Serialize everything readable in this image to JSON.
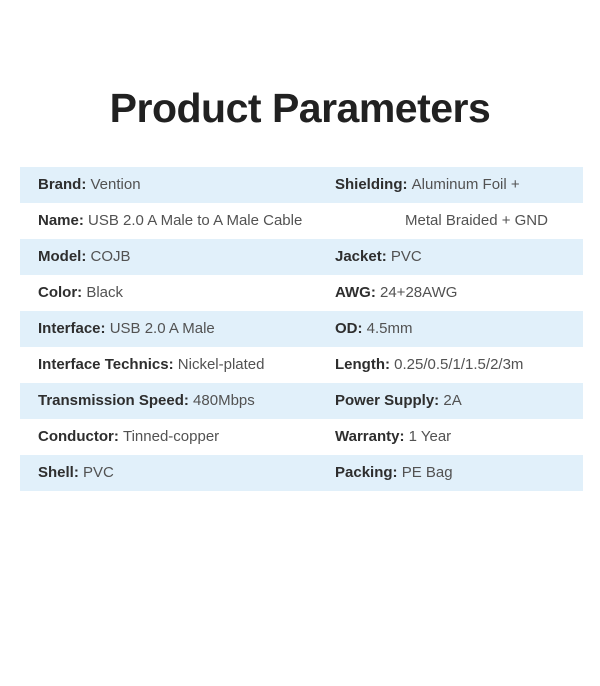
{
  "page": {
    "title": "Product Parameters"
  },
  "colors": {
    "background": "#ffffff",
    "title": "#212121",
    "stripe": "#e1f0fa",
    "label": "#2e2e2e",
    "value": "#525252"
  },
  "table": {
    "separator": ": ",
    "rows": [
      {
        "shaded": true,
        "left": {
          "label": "Brand",
          "value": "Vention"
        },
        "right": {
          "label": "Shielding",
          "value": "Aluminum Foil +"
        }
      },
      {
        "shaded": false,
        "left": {
          "label": "Name",
          "value": "USB 2.0 A Male to A Male Cable"
        },
        "right": {
          "label": "",
          "value": "Metal Braided + GND",
          "indent": true
        }
      },
      {
        "shaded": true,
        "left": {
          "label": "Model",
          "value": "COJB"
        },
        "right": {
          "label": "Jacket",
          "value": "PVC"
        }
      },
      {
        "shaded": false,
        "left": {
          "label": "Color",
          "value": "Black"
        },
        "right": {
          "label": "AWG",
          "value": "24+28AWG"
        }
      },
      {
        "shaded": true,
        "left": {
          "label": "Interface",
          "value": "USB 2.0 A Male"
        },
        "right": {
          "label": "OD",
          "value": "4.5mm"
        }
      },
      {
        "shaded": false,
        "left": {
          "label": "Interface Technics",
          "value": "Nickel-plated"
        },
        "right": {
          "label": "Length",
          "value": "0.25/0.5/1/1.5/2/3m"
        }
      },
      {
        "shaded": true,
        "left": {
          "label": "Transmission Speed",
          "value": "480Mbps"
        },
        "right": {
          "label": "Power Supply",
          "value": "2A"
        }
      },
      {
        "shaded": false,
        "left": {
          "label": "Conductor",
          "value": "Tinned-copper"
        },
        "right": {
          "label": "Warranty",
          "value": "1 Year"
        }
      },
      {
        "shaded": true,
        "left": {
          "label": "Shell",
          "value": "PVC"
        },
        "right": {
          "label": "Packing",
          "value": "PE Bag"
        }
      }
    ]
  }
}
